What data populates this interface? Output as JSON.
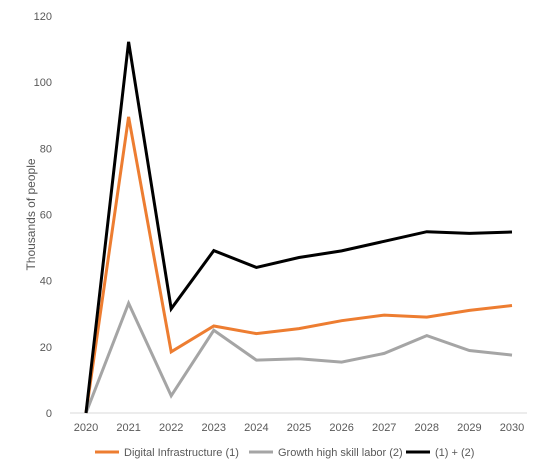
{
  "chart_data": {
    "type": "line",
    "title": "",
    "xlabel": "",
    "ylabel": "Thousands of people",
    "categories": [
      "2020",
      "2021",
      "2022",
      "2023",
      "2024",
      "2025",
      "2026",
      "2027",
      "2028",
      "2029",
      "2030"
    ],
    "ylim": [
      0,
      120
    ],
    "yticks": [
      0,
      20,
      40,
      60,
      80,
      100,
      120
    ],
    "grid": false,
    "legend_position": "bottom",
    "series": [
      {
        "name": "Digital Infrastructure (1)",
        "color": "#ED7D31",
        "values": [
          0,
          89.5,
          18.5,
          26.3,
          24,
          25.5,
          27.9,
          29.6,
          29,
          31,
          32.5
        ]
      },
      {
        "name": "Growth high skill labor (2)",
        "color": "#A5A5A5",
        "values": [
          0,
          33.2,
          5.2,
          25,
          16,
          16.4,
          15.4,
          18,
          23.4,
          18.9,
          17.5
        ]
      },
      {
        "name": "(1) + (2)",
        "color": "#000000",
        "values": [
          0,
          112.2,
          31.5,
          49.1,
          44,
          47,
          49,
          51.9,
          54.8,
          54.3,
          54.7
        ]
      }
    ]
  }
}
